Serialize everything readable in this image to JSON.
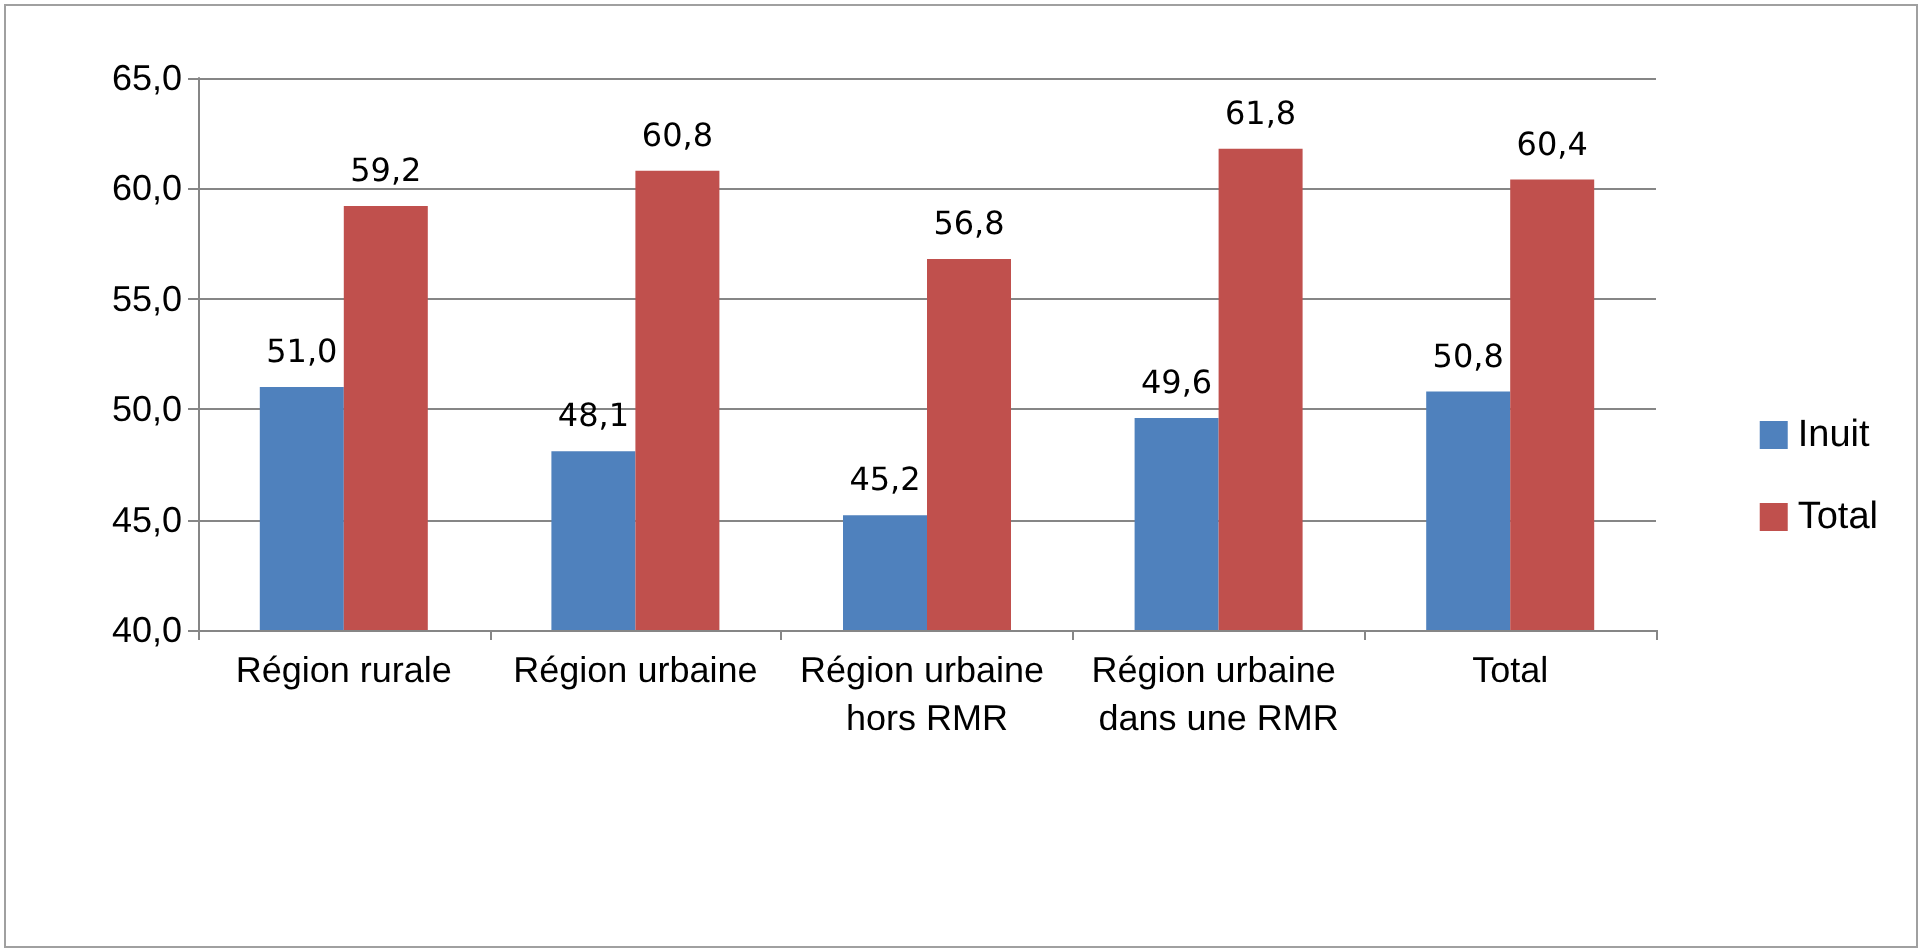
{
  "chart_data": {
    "type": "bar",
    "categories": [
      "Région rurale",
      "Région urbaine",
      "Région urbaine hors RMR",
      "Région urbaine dans une RMR",
      "Total"
    ],
    "series": [
      {
        "name": "Inuit",
        "color": "#4f81bd",
        "values": [
          51.0,
          48.1,
          45.2,
          49.6,
          50.8
        ],
        "value_labels": [
          "51,0",
          "48,1",
          "45,2",
          "49,6",
          "50,8"
        ]
      },
      {
        "name": "Total",
        "color": "#c0504d",
        "values": [
          59.2,
          60.8,
          56.8,
          61.8,
          60.4
        ],
        "value_labels": [
          "59,2",
          "60,8",
          "56,8",
          "61,8",
          "60,4"
        ]
      }
    ],
    "ylim": [
      40,
      65
    ],
    "yticks": [
      {
        "value": 40,
        "label": "40,0"
      },
      {
        "value": 45,
        "label": "45,0"
      },
      {
        "value": 50,
        "label": "50,0"
      },
      {
        "value": 55,
        "label": "55,0"
      },
      {
        "value": 60,
        "label": "60,0"
      },
      {
        "value": 65,
        "label": "65,0"
      }
    ],
    "grid": "y",
    "legend": "right"
  }
}
